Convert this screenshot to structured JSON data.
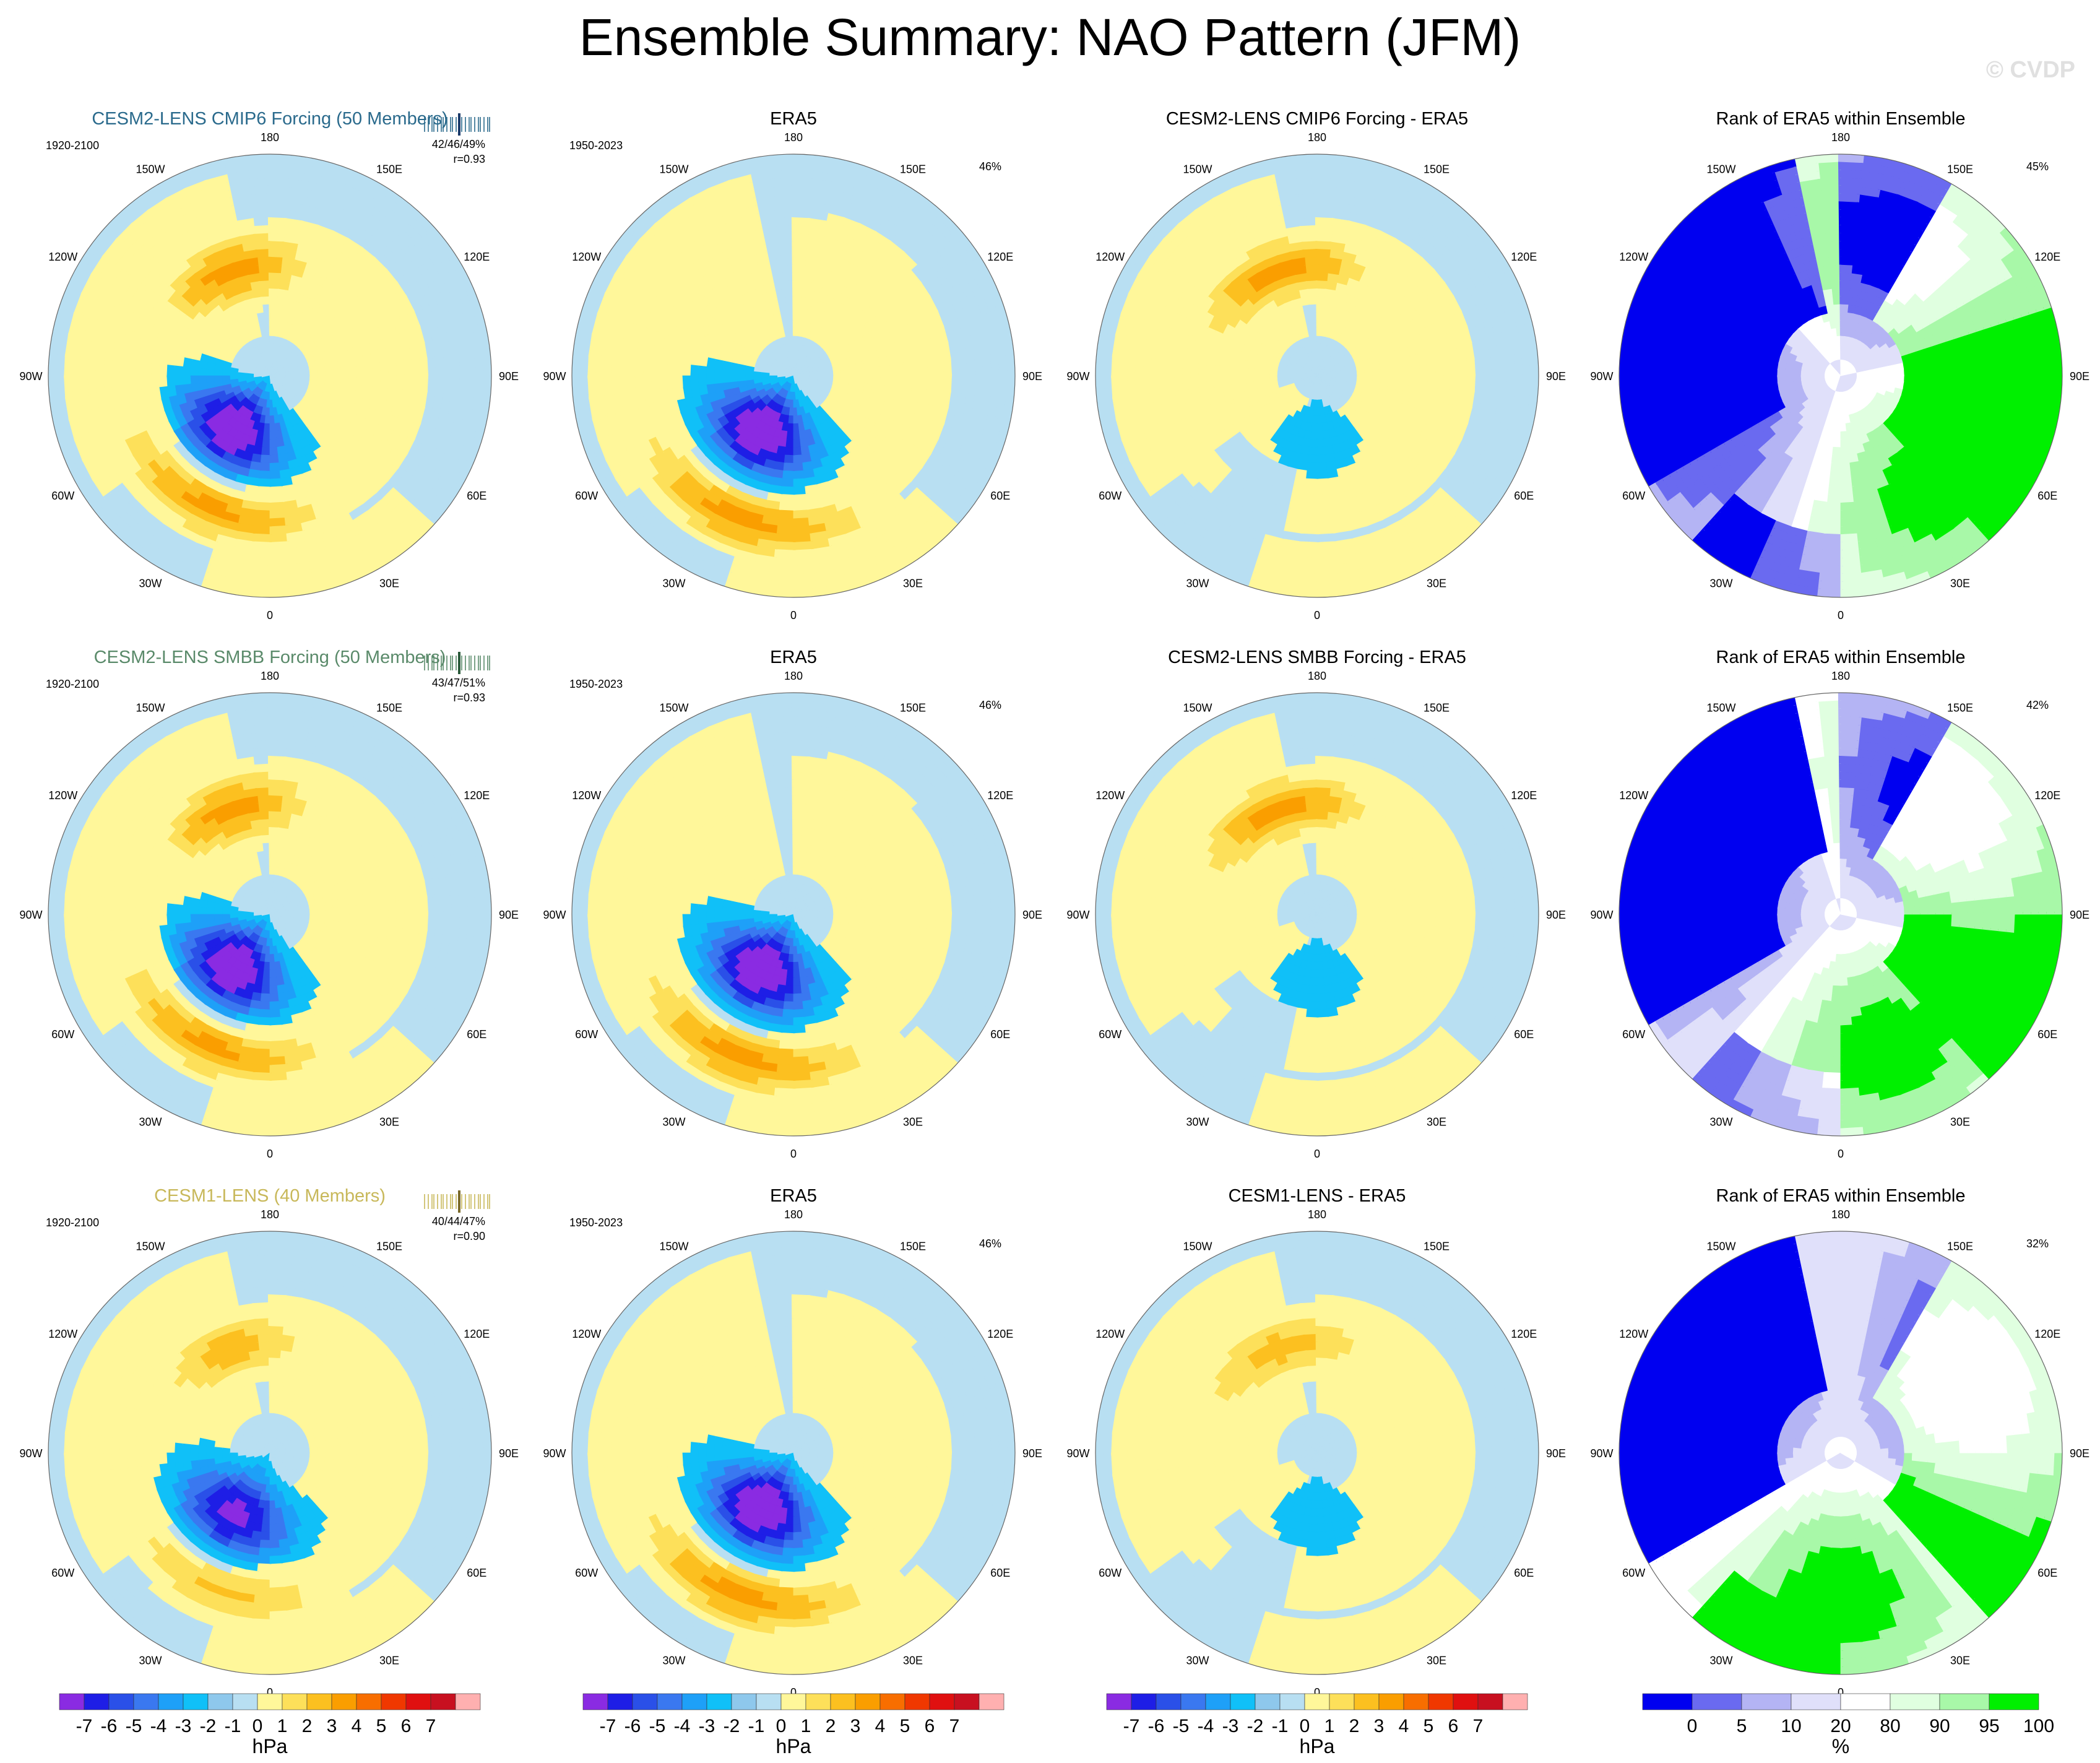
{
  "title": "Ensemble Summary: NAO Pattern (JFM)",
  "watermark": "© CVDP",
  "colors": {
    "diverging": [
      "#8a2be2",
      "#1e1ee6",
      "#2a50e8",
      "#3a78f0",
      "#1ea0f8",
      "#10c0f8",
      "#8ec8ec",
      "#b8dff2",
      "#fff79a",
      "#fde05a",
      "#fcc020",
      "#fa9e00",
      "#f86e00",
      "#f03800",
      "#e01010",
      "#c81020",
      "#ffb0b0"
    ],
    "rank": [
      "#0000f0",
      "#6a6af0",
      "#b4b4f4",
      "#e0e0fa",
      "#ffffff",
      "#e0ffe0",
      "#a8f8a8",
      "#00f000"
    ],
    "ocean_neutral": "#b8dff2",
    "land_neutral": "#fff79a",
    "coast": "#8a8a8a"
  },
  "chart_data": [
    {
      "id": "r1c1",
      "type": "heatmap",
      "title": "CESM2-LENS CMIP6 Forcing (50 Members)",
      "title_color": "#2a6a8c",
      "period": "1920-2100",
      "stat_text": "42/46/49%",
      "corr_text": "r=0.93",
      "has_strip": true,
      "strip_color": "#2a6a8c",
      "strip_highlight": "#1a3a6a",
      "variance_pct": "",
      "field": {
        "low_lat": 70,
        "low_lon": -35,
        "low_min": -7,
        "high1_lat": 45,
        "high1_lon": -25,
        "high1_max": 4,
        "high2_lat": 55,
        "high2_lon": -160,
        "high2_max": 4
      }
    },
    {
      "id": "r1c2",
      "type": "heatmap",
      "title": "ERA5",
      "title_color": "#000000",
      "period": "1950-2023",
      "stat_text": "",
      "corr_text": "",
      "has_strip": false,
      "variance_pct": "46%",
      "field": {
        "low_lat": 70,
        "low_lon": -30,
        "low_min": -7,
        "high1_lat": 42,
        "high1_lon": -20,
        "high1_max": 4,
        "high2_lat": 45,
        "high2_lon": 150,
        "high2_max": 1
      }
    },
    {
      "id": "r1c3",
      "type": "heatmap",
      "title": "CESM2-LENS CMIP6 Forcing - ERA5",
      "title_color": "#000000",
      "period": "",
      "stat_text": "",
      "corr_text": "",
      "has_strip": false,
      "variance_pct": "",
      "field": {
        "low_lat": 70,
        "low_lon": 0,
        "low_min": -1,
        "high1_lat": 55,
        "high1_lon": -160,
        "high1_max": 4,
        "high2_lat": 45,
        "high2_lon": -70,
        "high2_max": 1
      }
    },
    {
      "id": "r1c4",
      "type": "heatmap",
      "title": "Rank of ERA5 within Ensemble",
      "title_color": "#000000",
      "period": "",
      "stat_text": "",
      "corr_text": "",
      "has_strip": false,
      "variance_pct": "45%",
      "field": {
        "rank_seed": 1
      }
    },
    {
      "id": "r2c1",
      "type": "heatmap",
      "title": "CESM2-LENS SMBB Forcing (50 Members)",
      "title_color": "#5a8a6a",
      "period": "1920-2100",
      "stat_text": "43/47/51%",
      "corr_text": "r=0.93",
      "has_strip": true,
      "strip_color": "#5a8a6a",
      "strip_highlight": "#2a5a3a",
      "variance_pct": "",
      "field": {
        "low_lat": 70,
        "low_lon": -35,
        "low_min": -7,
        "high1_lat": 45,
        "high1_lon": -25,
        "high1_max": 4,
        "high2_lat": 55,
        "high2_lon": -160,
        "high2_max": 4
      }
    },
    {
      "id": "r2c2",
      "type": "heatmap",
      "title": "ERA5",
      "title_color": "#000000",
      "period": "1950-2023",
      "stat_text": "",
      "corr_text": "",
      "has_strip": false,
      "variance_pct": "46%",
      "field": {
        "low_lat": 70,
        "low_lon": -30,
        "low_min": -7,
        "high1_lat": 42,
        "high1_lon": -20,
        "high1_max": 4,
        "high2_lat": 45,
        "high2_lon": 150,
        "high2_max": 1
      }
    },
    {
      "id": "r2c3",
      "type": "heatmap",
      "title": "CESM2-LENS SMBB Forcing - ERA5",
      "title_color": "#000000",
      "period": "",
      "stat_text": "",
      "corr_text": "",
      "has_strip": false,
      "variance_pct": "",
      "field": {
        "low_lat": 70,
        "low_lon": 0,
        "low_min": -1,
        "high1_lat": 55,
        "high1_lon": -160,
        "high1_max": 4,
        "high2_lat": 45,
        "high2_lon": -70,
        "high2_max": 1
      }
    },
    {
      "id": "r2c4",
      "type": "heatmap",
      "title": "Rank of ERA5 within Ensemble",
      "title_color": "#000000",
      "period": "",
      "stat_text": "",
      "corr_text": "",
      "has_strip": false,
      "variance_pct": "42%",
      "field": {
        "rank_seed": 2
      }
    },
    {
      "id": "r3c1",
      "type": "heatmap",
      "title": "CESM1-LENS (40 Members)",
      "title_color": "#c8b85a",
      "period": "1920-2100",
      "stat_text": "40/44/47%",
      "corr_text": "r=0.90",
      "has_strip": true,
      "strip_color": "#c8b85a",
      "strip_highlight": "#7a6a2a",
      "variance_pct": "",
      "field": {
        "low_lat": 68,
        "low_lon": -30,
        "low_min": -6,
        "high1_lat": 45,
        "high1_lon": -20,
        "high1_max": 3,
        "high2_lat": 55,
        "high2_lon": -160,
        "high2_max": 3
      }
    },
    {
      "id": "r3c2",
      "type": "heatmap",
      "title": "ERA5",
      "title_color": "#000000",
      "period": "1950-2023",
      "stat_text": "",
      "corr_text": "",
      "has_strip": false,
      "variance_pct": "46%",
      "field": {
        "low_lat": 70,
        "low_lon": -30,
        "low_min": -7,
        "high1_lat": 42,
        "high1_lon": -20,
        "high1_max": 4,
        "high2_lat": 45,
        "high2_lon": 150,
        "high2_max": 1
      }
    },
    {
      "id": "r3c3",
      "type": "heatmap",
      "title": "CESM1-LENS - ERA5",
      "title_color": "#000000",
      "period": "",
      "stat_text": "",
      "corr_text": "",
      "has_strip": false,
      "variance_pct": "",
      "field": {
        "low_lat": 70,
        "low_lon": 0,
        "low_min": -1,
        "high1_lat": 55,
        "high1_lon": -160,
        "high1_max": 3,
        "high2_lat": 45,
        "high2_lon": -70,
        "high2_max": 1
      }
    },
    {
      "id": "r3c4",
      "type": "heatmap",
      "title": "Rank of ERA5 within Ensemble",
      "title_color": "#000000",
      "period": "",
      "stat_text": "",
      "corr_text": "",
      "has_strip": false,
      "variance_pct": "32%",
      "field": {
        "rank_seed": 3
      }
    }
  ],
  "lon_labels": [
    "180",
    "150E",
    "120E",
    "90E",
    "60E",
    "30E",
    "0",
    "30W",
    "60W",
    "90W",
    "120W",
    "150W"
  ],
  "colorbars": [
    {
      "unit": "hPa",
      "ticks": [
        "-7",
        "-6",
        "-5",
        "-4",
        "-3",
        "-2",
        "-1",
        "0",
        "1",
        "2",
        "3",
        "4",
        "5",
        "6",
        "7"
      ]
    },
    {
      "unit": "hPa",
      "ticks": [
        "-7",
        "-6",
        "-5",
        "-4",
        "-3",
        "-2",
        "-1",
        "0",
        "1",
        "2",
        "3",
        "4",
        "5",
        "6",
        "7"
      ]
    },
    {
      "unit": "hPa",
      "ticks": [
        "-7",
        "-6",
        "-5",
        "-4",
        "-3",
        "-2",
        "-1",
        "0",
        "1",
        "2",
        "3",
        "4",
        "5",
        "6",
        "7"
      ]
    },
    {
      "unit": "%",
      "ticks": [
        "0",
        "5",
        "10",
        "20",
        "80",
        "90",
        "95",
        "100"
      ]
    }
  ]
}
